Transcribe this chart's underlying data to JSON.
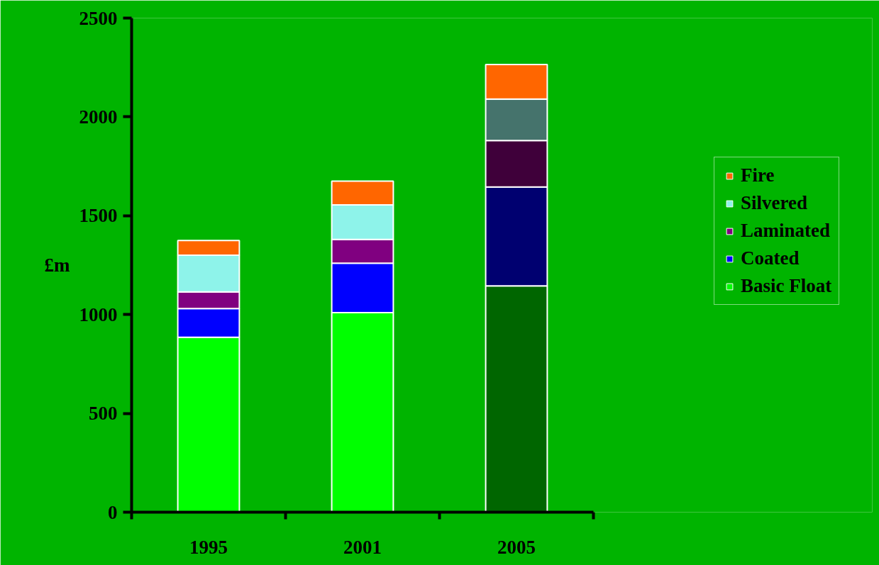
{
  "chart_data": {
    "type": "bar",
    "stacked": true,
    "ylabel": "£m",
    "categories": [
      "1995",
      "2001",
      "2005"
    ],
    "series": [
      {
        "name": "Basic Float",
        "color": "#00ff00",
        "colors": [
          "#00ff00",
          "#00ff00",
          "#006600"
        ],
        "values": [
          885,
          1010,
          1145
        ]
      },
      {
        "name": "Coated",
        "color": "#0000ff",
        "colors": [
          "#0000ff",
          "#0000ff",
          "#000070"
        ],
        "values": [
          145,
          250,
          500
        ]
      },
      {
        "name": "Laminated",
        "color": "#800080",
        "colors": [
          "#800080",
          "#800080",
          "#3f003a"
        ],
        "values": [
          85,
          120,
          235
        ]
      },
      {
        "name": "Silvered",
        "color": "#8ef3ea",
        "colors": [
          "#8ef3ea",
          "#8ef3ea",
          "#45736c"
        ],
        "values": [
          185,
          175,
          210
        ]
      },
      {
        "name": "Fire",
        "color": "#ff6600",
        "colors": [
          "#ff6600",
          "#ff6600",
          "#ff6600"
        ],
        "values": [
          75,
          120,
          175
        ]
      }
    ],
    "ylim": [
      0,
      2500
    ],
    "yticks": [
      0,
      500,
      1000,
      1500,
      2000,
      2500
    ],
    "grid": false,
    "legend": "right"
  }
}
